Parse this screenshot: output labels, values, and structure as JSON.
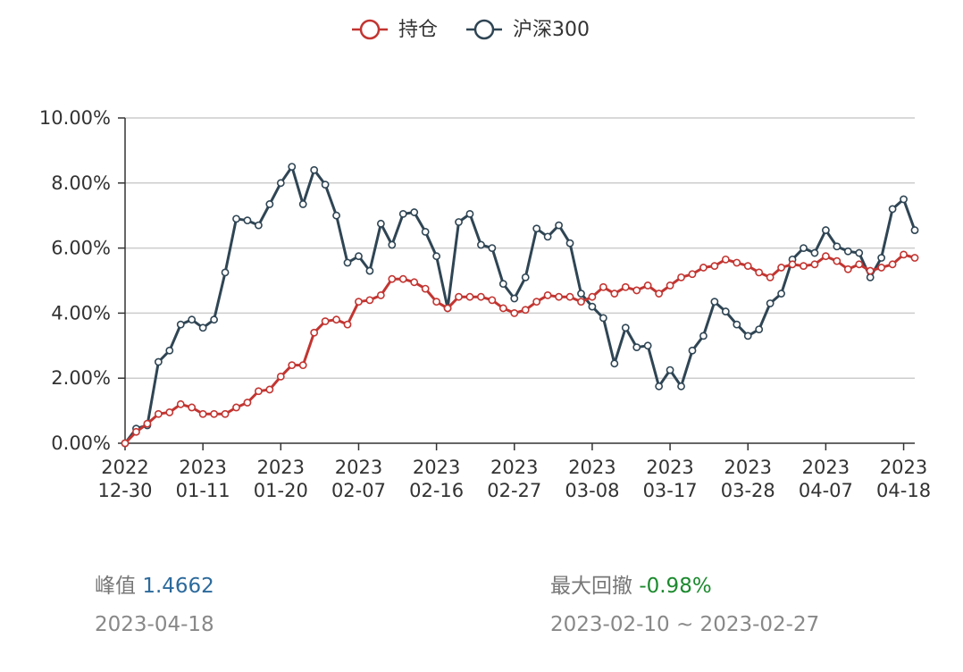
{
  "legend": [
    {
      "name": "持仓",
      "color": "#c23531"
    },
    {
      "name": "沪深300",
      "color": "#2f4554"
    }
  ],
  "stats": {
    "peak_label": "峰值",
    "peak_value": "1.4662",
    "peak_date": "2023-04-18",
    "drawdown_label": "最大回撤",
    "drawdown_value": "-0.98%",
    "drawdown_range": "2023-02-10 ~ 2023-02-27"
  },
  "chart_data": {
    "type": "line",
    "title": "",
    "xlabel": "",
    "ylabel": "",
    "ylim": [
      0,
      10
    ],
    "y_tick_labels": [
      "0.00%",
      "2.00%",
      "4.00%",
      "6.00%",
      "8.00%",
      "10.00%"
    ],
    "x_tick_labels": [
      {
        "index": 0,
        "year": "2022",
        "md": "12-30"
      },
      {
        "index": 7,
        "year": "2023",
        "md": "01-11"
      },
      {
        "index": 14,
        "year": "2023",
        "md": "01-20"
      },
      {
        "index": 21,
        "year": "2023",
        "md": "02-07"
      },
      {
        "index": 28,
        "year": "2023",
        "md": "02-16"
      },
      {
        "index": 35,
        "year": "2023",
        "md": "02-27"
      },
      {
        "index": 42,
        "year": "2023",
        "md": "03-08"
      },
      {
        "index": 49,
        "year": "2023",
        "md": "03-17"
      },
      {
        "index": 56,
        "year": "2023",
        "md": "03-28"
      },
      {
        "index": 63,
        "year": "2023",
        "md": "04-07"
      },
      {
        "index": 70,
        "year": "2023",
        "md": "04-18"
      }
    ],
    "grid": true,
    "legend_position": "top-center",
    "series": [
      {
        "name": "持仓",
        "color": "#c23531",
        "values": [
          0.0,
          0.35,
          0.6,
          0.9,
          0.95,
          1.2,
          1.1,
          0.9,
          0.9,
          0.9,
          1.1,
          1.25,
          1.6,
          1.65,
          2.05,
          2.4,
          2.4,
          3.4,
          3.75,
          3.8,
          3.65,
          4.35,
          4.4,
          4.55,
          5.05,
          5.05,
          4.95,
          4.75,
          4.35,
          4.15,
          4.5,
          4.5,
          4.5,
          4.4,
          4.15,
          4.0,
          4.1,
          4.35,
          4.55,
          4.5,
          4.5,
          4.35,
          4.5,
          4.8,
          4.6,
          4.8,
          4.7,
          4.85,
          4.6,
          4.85,
          5.1,
          5.2,
          5.4,
          5.45,
          5.65,
          5.55,
          5.45,
          5.25,
          5.1,
          5.4,
          5.5,
          5.45,
          5.5,
          5.75,
          5.6,
          5.35,
          5.5,
          5.3,
          5.4,
          5.5,
          5.8,
          5.7
        ]
      },
      {
        "name": "沪深300",
        "color": "#2f4554",
        "values": [
          0.0,
          0.45,
          0.55,
          2.5,
          2.85,
          3.65,
          3.8,
          3.55,
          3.8,
          5.25,
          6.9,
          6.85,
          6.7,
          7.35,
          8.0,
          8.5,
          7.35,
          8.4,
          7.95,
          7.0,
          5.55,
          5.75,
          5.3,
          6.75,
          6.1,
          7.05,
          7.1,
          6.5,
          5.75,
          4.15,
          6.8,
          7.05,
          6.1,
          6.0,
          4.9,
          4.45,
          5.1,
          6.6,
          6.35,
          6.7,
          6.15,
          4.6,
          4.2,
          3.85,
          2.45,
          3.55,
          2.95,
          3.0,
          1.75,
          2.25,
          1.75,
          2.85,
          3.3,
          4.35,
          4.05,
          3.65,
          3.3,
          3.5,
          4.3,
          4.6,
          5.65,
          6.0,
          5.85,
          6.55,
          6.05,
          5.9,
          5.85,
          5.1,
          5.7,
          7.2,
          7.5,
          6.55
        ]
      }
    ]
  }
}
